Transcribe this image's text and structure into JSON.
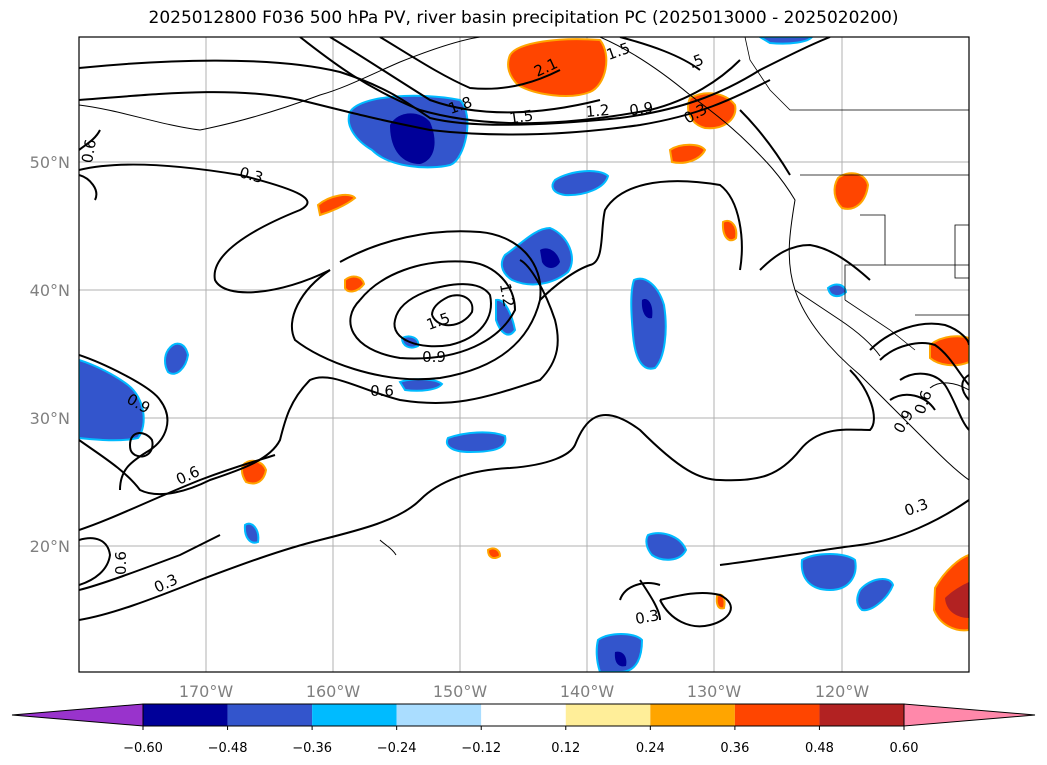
{
  "title": "2025012800 F036 500 hPa PV, river basin precipitation PC (2025013000 - 2025020200)",
  "map": {
    "lon_labels": [
      "170°W",
      "160°W",
      "150°W",
      "140°W",
      "130°W",
      "120°W"
    ],
    "lat_labels": [
      "50°N",
      "40°N",
      "30°N",
      "20°N"
    ],
    "contour_labels": [
      "1.5",
      "2.1",
      "1.8",
      "1.5",
      "1.2",
      "0.9",
      ".5",
      "0.3",
      "0.6",
      "1.2",
      "1.5",
      "0.9",
      "0.6",
      "0.9",
      "0.6",
      "0.3",
      "0.6",
      "0.3",
      "0.3",
      "0.3",
      "0.9",
      "0.6"
    ]
  },
  "colorbar": {
    "colors": [
      "#9933cc",
      "#000099",
      "#3355cc",
      "#00bbff",
      "#aaddff",
      "#ffffff",
      "#ffee99",
      "#ffa500",
      "#ff4500",
      "#b22222",
      "#ff88aa"
    ],
    "tick_labels": [
      "−0.60",
      "−0.48",
      "−0.36",
      "−0.24",
      "−0.12",
      "0.12",
      "0.24",
      "0.36",
      "0.48",
      "0.60"
    ]
  }
}
